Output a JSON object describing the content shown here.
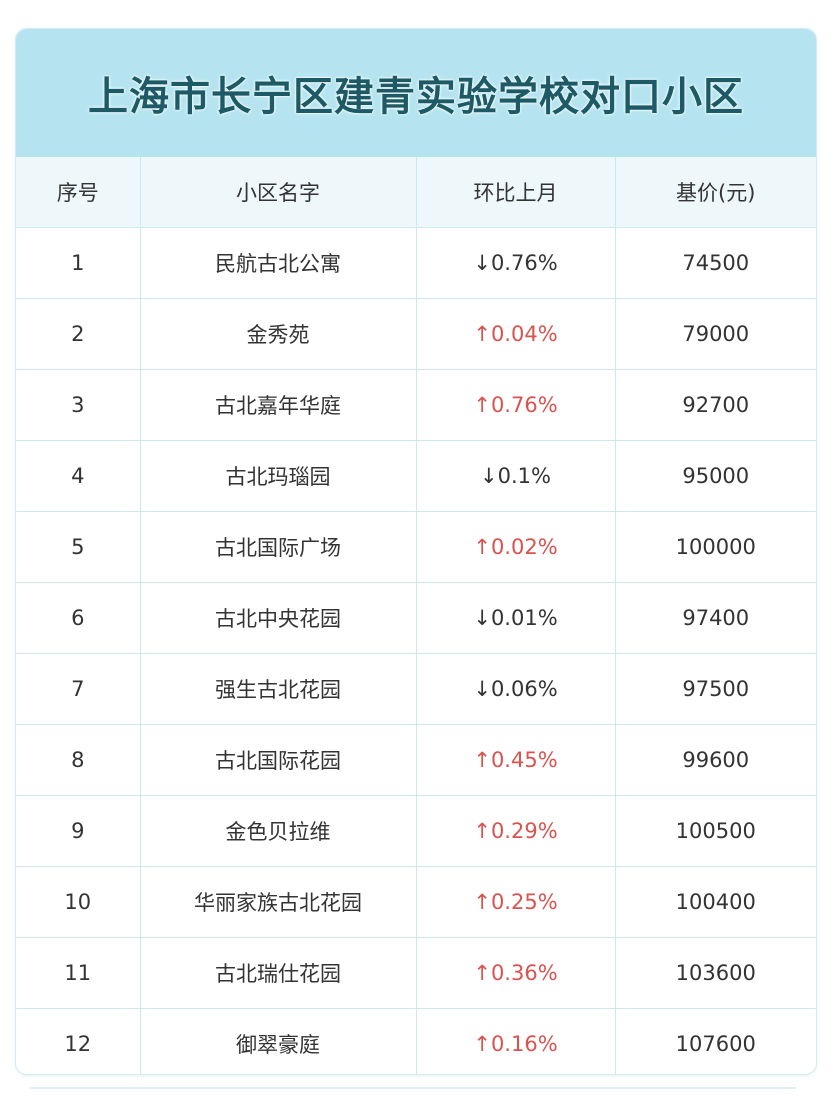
{
  "title": "上海市长宁区建青实验学校对口小区",
  "headers": [
    "序号",
    "小区名字",
    "环比上月",
    "基价(元)"
  ],
  "colors": {
    "title_band": "#b5e4f0",
    "title_text": "#1d5a66",
    "up": "#d9534f",
    "down": "#333333"
  },
  "rows": [
    {
      "no": "1",
      "name": "民航古北公寓",
      "change": "↓0.76%",
      "trend": "down",
      "price": "74500"
    },
    {
      "no": "2",
      "name": "金秀苑",
      "change": "↑0.04%",
      "trend": "up",
      "price": "79000"
    },
    {
      "no": "3",
      "name": "古北嘉年华庭",
      "change": "↑0.76%",
      "trend": "up",
      "price": "92700"
    },
    {
      "no": "4",
      "name": "古北玛瑙园",
      "change": "↓0.1%",
      "trend": "down",
      "price": "95000"
    },
    {
      "no": "5",
      "name": "古北国际广场",
      "change": "↑0.02%",
      "trend": "up",
      "price": "100000"
    },
    {
      "no": "6",
      "name": "古北中央花园",
      "change": "↓0.01%",
      "trend": "down",
      "price": "97400"
    },
    {
      "no": "7",
      "name": "强生古北花园",
      "change": "↓0.06%",
      "trend": "down",
      "price": "97500"
    },
    {
      "no": "8",
      "name": "古北国际花园",
      "change": "↑0.45%",
      "trend": "up",
      "price": "99600"
    },
    {
      "no": "9",
      "name": "金色贝拉维",
      "change": "↑0.29%",
      "trend": "up",
      "price": "100500"
    },
    {
      "no": "10",
      "name": "华丽家族古北花园",
      "change": "↑0.25%",
      "trend": "up",
      "price": "100400"
    },
    {
      "no": "11",
      "name": "古北瑞仕花园",
      "change": "↑0.36%",
      "trend": "up",
      "price": "103600"
    },
    {
      "no": "12",
      "name": "御翠豪庭",
      "change": "↑0.16%",
      "trend": "up",
      "price": "107600"
    }
  ]
}
